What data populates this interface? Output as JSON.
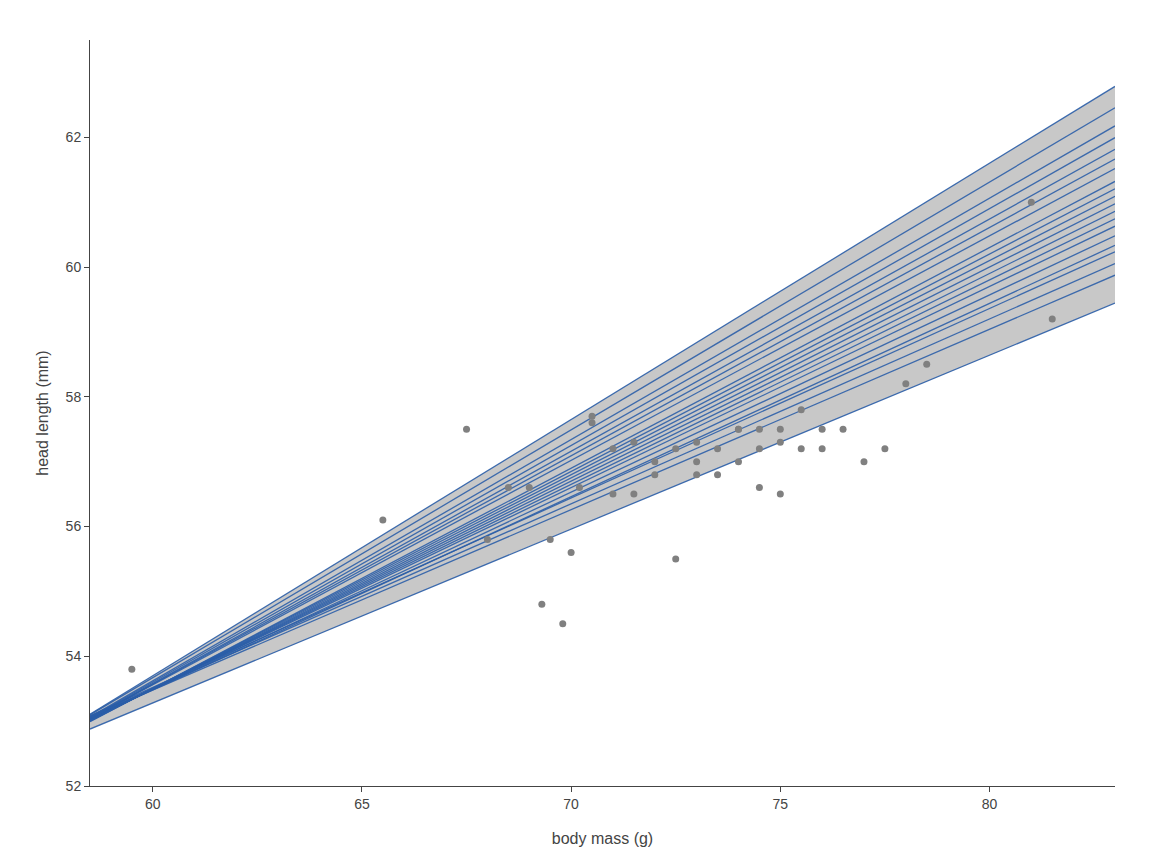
{
  "chart_data": {
    "type": "scatter",
    "xlabel": "body mass (g)",
    "ylabel": "head length (mm)",
    "xlim": [
      58.5,
      83.0
    ],
    "ylim": [
      52.0,
      63.5
    ],
    "xticks": [
      60,
      65,
      70,
      75,
      80
    ],
    "yticks": [
      52,
      54,
      56,
      58,
      60,
      62
    ],
    "grid": false,
    "series": [
      {
        "type": "band",
        "color": "#c8c8c8"
      },
      {
        "type": "line",
        "color": "#2b5ea8",
        "x": [
          58.5,
          83.0
        ],
        "values": [
          52.878,
          59.444
        ]
      },
      {
        "type": "line",
        "color": "#2b5ea8",
        "x": [
          58.5,
          83.0
        ],
        "values": [
          53.063,
          59.874
        ]
      },
      {
        "type": "line",
        "color": "#2b5ea8",
        "x": [
          58.5,
          83.0
        ],
        "values": [
          53.0725,
          60.055
        ]
      },
      {
        "type": "line",
        "color": "#2b5ea8",
        "x": [
          58.5,
          83.0
        ],
        "values": [
          53.082,
          60.236
        ]
      },
      {
        "type": "line",
        "color": "#2b5ea8",
        "x": [
          58.5,
          83.0
        ],
        "values": [
          53.033,
          60.334
        ]
      },
      {
        "type": "line",
        "color": "#2b5ea8",
        "x": [
          58.5,
          83.0
        ],
        "values": [
          53.034,
          60.482
        ]
      },
      {
        "type": "line",
        "color": "#2b5ea8",
        "x": [
          58.5,
          83.0
        ],
        "values": [
          53.035,
          60.63
        ]
      },
      {
        "type": "line",
        "color": "#2b5ea8",
        "x": [
          58.5,
          83.0
        ],
        "values": [
          53.0275,
          60.745
        ]
      },
      {
        "type": "line",
        "color": "#2b5ea8",
        "x": [
          58.5,
          83.0
        ],
        "values": [
          53.02,
          60.86
        ]
      },
      {
        "type": "line",
        "color": "#2b5ea8",
        "x": [
          58.5,
          83.0
        ],
        "values": [
          53.0125,
          60.975
        ]
      },
      {
        "type": "line",
        "color": "#2b5ea8",
        "x": [
          58.5,
          83.0
        ],
        "values": [
          53.005,
          61.09
        ]
      },
      {
        "type": "line",
        "color": "#2b5ea8",
        "x": [
          58.5,
          83.0
        ],
        "values": [
          52.9975,
          61.205
        ]
      },
      {
        "type": "line",
        "color": "#2b5ea8",
        "x": [
          58.5,
          83.0
        ],
        "values": [
          52.99,
          61.32
        ]
      },
      {
        "type": "line",
        "color": "#2b5ea8",
        "x": [
          58.5,
          83.0
        ],
        "values": [
          53.041,
          61.518
        ]
      },
      {
        "type": "line",
        "color": "#2b5ea8",
        "x": [
          58.5,
          83.0
        ],
        "values": [
          53.042,
          61.666
        ]
      },
      {
        "type": "line",
        "color": "#2b5ea8",
        "x": [
          58.5,
          83.0
        ],
        "values": [
          53.043,
          61.814
        ]
      },
      {
        "type": "line",
        "color": "#2b5ea8",
        "x": [
          58.5,
          83.0
        ],
        "values": [
          53.0525,
          61.995
        ]
      },
      {
        "type": "line",
        "color": "#2b5ea8",
        "x": [
          58.5,
          83.0
        ],
        "values": [
          53.062,
          62.176
        ]
      },
      {
        "type": "line",
        "color": "#2b5ea8",
        "x": [
          58.5,
          83.0
        ],
        "values": [
          53.097,
          62.456
        ]
      },
      {
        "type": "line",
        "color": "#2b5ea8",
        "x": [
          58.5,
          83.0
        ],
        "values": [
          53.1075,
          62.785
        ]
      },
      {
        "type": "scatter",
        "color": "#808080",
        "x": [
          59.5,
          65.5,
          67.5,
          68.0,
          68.5,
          69.0,
          69.3,
          69.5,
          69.8,
          70.0,
          70.2,
          70.5,
          70.5,
          71.0,
          71.0,
          71.5,
          71.5,
          72.0,
          72.0,
          72.5,
          72.5,
          73.0,
          73.0,
          73.0,
          73.5,
          73.5,
          74.0,
          74.0,
          74.0,
          74.5,
          74.5,
          74.5,
          75.0,
          75.0,
          75.0,
          75.5,
          75.5,
          76.0,
          76.0,
          76.5,
          77.0,
          77.5,
          78.0,
          78.5,
          81.0,
          81.5
        ],
        "values": [
          53.8,
          56.1,
          57.5,
          55.8,
          56.6,
          56.6,
          54.8,
          55.8,
          54.5,
          55.6,
          56.6,
          57.7,
          57.6,
          57.2,
          56.5,
          56.5,
          57.3,
          57.0,
          56.8,
          57.2,
          55.5,
          57.0,
          57.3,
          56.8,
          56.8,
          57.2,
          57.5,
          57.0,
          57.5,
          57.5,
          57.2,
          56.6,
          57.5,
          57.3,
          56.5,
          57.2,
          57.8,
          57.5,
          57.2,
          57.5,
          57.0,
          57.2,
          58.2,
          58.5,
          61.0,
          59.2
        ]
      }
    ]
  }
}
